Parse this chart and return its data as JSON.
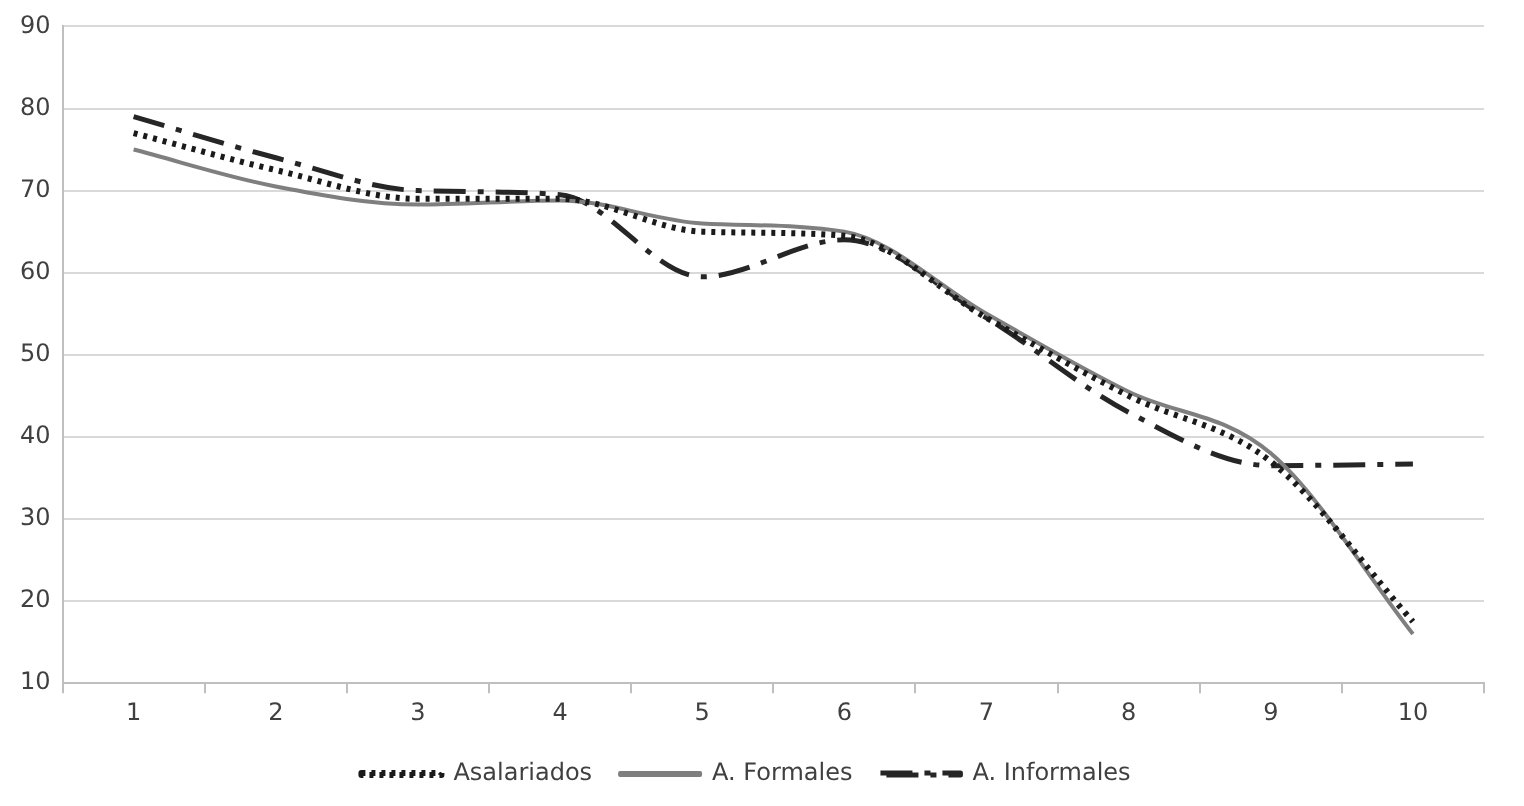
{
  "chart_data": {
    "type": "line",
    "categories": [
      "1",
      "2",
      "3",
      "4",
      "5",
      "6",
      "7",
      "8",
      "9",
      "10"
    ],
    "series": [
      {
        "name": "Asalariados",
        "color": "#1a1a1a",
        "line_style": "dotted",
        "values": [
          77,
          72.5,
          69,
          69,
          65,
          64.5,
          54.5,
          45,
          37,
          17.5
        ]
      },
      {
        "name": "A. Formales",
        "color": "#7f7f7f",
        "line_style": "solid",
        "values": [
          75,
          70.5,
          68.3,
          68.8,
          66,
          65,
          55,
          45.5,
          38,
          16
        ]
      },
      {
        "name": "A. Informales",
        "color": "#262626",
        "line_style": "dashed",
        "values": [
          79,
          74,
          70,
          69.5,
          59.5,
          64,
          54.5,
          43,
          36.5,
          36.7
        ]
      }
    ],
    "ylim": [
      10,
      90
    ],
    "yticks": [
      10,
      20,
      30,
      40,
      50,
      60,
      70,
      80,
      90
    ],
    "grid": "y",
    "legend": "bottom",
    "marker": "none"
  }
}
